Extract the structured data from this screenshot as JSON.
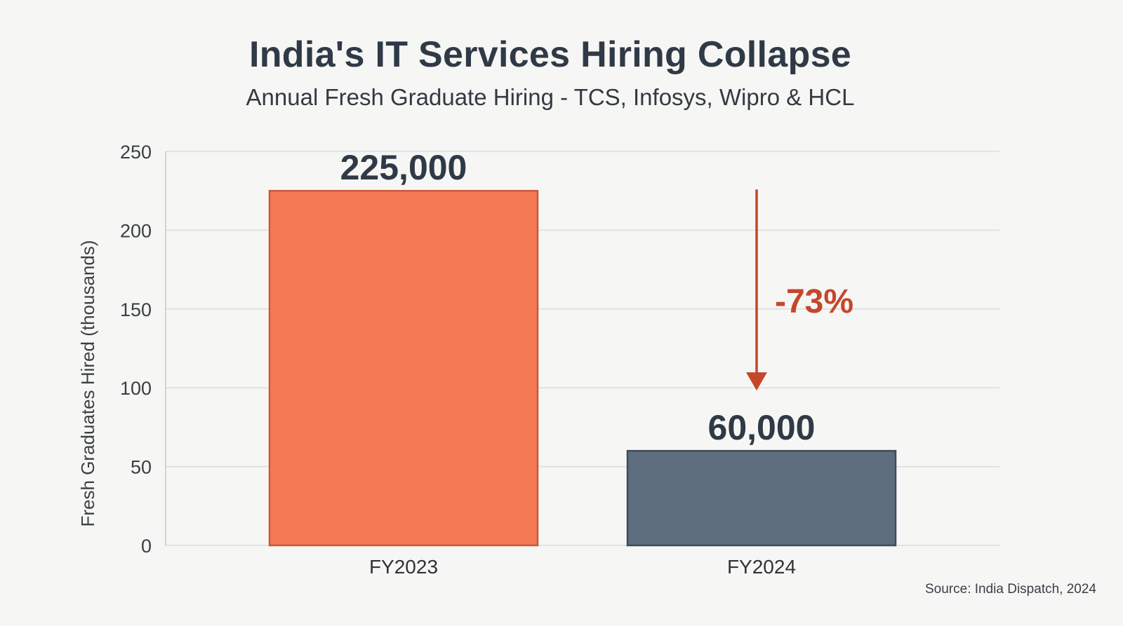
{
  "title": "India's IT Services Hiring Collapse",
  "subtitle": "Annual Fresh Graduate Hiring - TCS, Infosys, Wipro & HCL",
  "source": "Source: India Dispatch, 2024",
  "colors": {
    "fy2023": "#f47a55",
    "fy2024": "#5e6e7f",
    "annotation": "#c4472a",
    "grid": "#dcdcdc",
    "text": "#2f3a46"
  },
  "chart_data": {
    "type": "bar",
    "title": "India's IT Services Hiring Collapse",
    "subtitle": "Annual Fresh Graduate Hiring - TCS, Infosys, Wipro & HCL",
    "xlabel": "",
    "ylabel": "Fresh Graduates Hired (thousands)",
    "ylim": [
      0,
      250
    ],
    "yticks": [
      0,
      50,
      100,
      150,
      200,
      250
    ],
    "grid": true,
    "categories": [
      "FY2023",
      "FY2024"
    ],
    "values": [
      225,
      60
    ],
    "data_labels": [
      "225,000",
      "60,000"
    ],
    "annotation": {
      "text": "-73%",
      "from_category": "FY2023",
      "to_category": "FY2024"
    }
  }
}
